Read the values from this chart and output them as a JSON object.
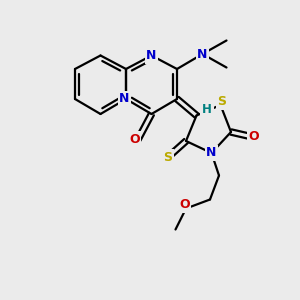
{
  "bg_color": "#ebebeb",
  "atom_colors": {
    "C": "#000000",
    "N": "#0000cc",
    "O": "#cc0000",
    "S": "#bbaa00",
    "H": "#008080"
  },
  "bond_color": "#000000",
  "bond_width": 1.6,
  "figsize": [
    3.0,
    3.0
  ],
  "dpi": 100
}
